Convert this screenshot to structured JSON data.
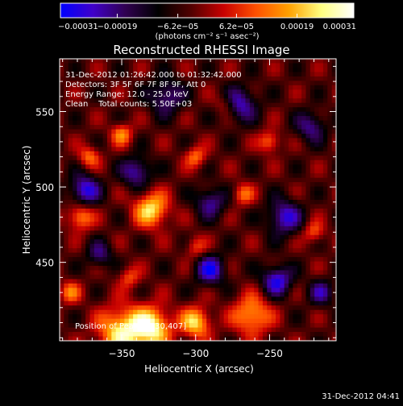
{
  "chart_data": {
    "type": "heatmap",
    "title": "Reconstructed RHESSI Image",
    "xlabel": "Heliocentric X (arcsec)",
    "ylabel": "Heliocentric Y (arcsec)",
    "xlim": [
      -392,
      -205
    ],
    "ylim": [
      398,
      585
    ],
    "x_ticks": [
      -350,
      -300,
      -250
    ],
    "x_tick_labels": [
      "−350",
      "−300",
      "−250"
    ],
    "y_ticks": [
      450,
      500,
      550
    ],
    "y_tick_labels": [
      "450",
      "500",
      "550"
    ],
    "colorbar": {
      "range": [
        -0.00031,
        0.00031
      ],
      "ticks": [
        -0.00031,
        -0.00019,
        -6.2e-05,
        6.2e-05,
        0.00019,
        0.00031
      ],
      "tick_labels": [
        "−0.00031",
        "−0.00019",
        "−6.2e−05",
        "6.2e−05",
        "0.00019",
        "0.00031"
      ],
      "unit": "(photons cm⁻² s⁻¹ asec⁻²)",
      "colors": [
        "#0000ff",
        "#4000c8",
        "#300050",
        "#000000",
        "#500000",
        "#c80000",
        "#ff5000",
        "#ffa000",
        "#ffff80",
        "#ffffff"
      ]
    },
    "annotations": [
      "31-Dec-2012 01:26:42.000 to 01:32:42.000",
      "Detectors: 3F 5F 6F 7F 8F 9F, Att 0",
      "Energy Range: 12.0 - 25.0 keV",
      "Clean    Total counts: 5.50E+03"
    ],
    "peak_label": "Position of Peak: [-330,407]",
    "timestamp": "31-Dec-2012 04:41",
    "sources": [
      {
        "x": -330,
        "y": 407,
        "value": 0.00031,
        "sigma": 9
      },
      {
        "x": -350,
        "y": 404,
        "value": 0.00028,
        "sigma": 11
      },
      {
        "x": -300,
        "y": 410,
        "value": 0.00026,
        "sigma": 7
      },
      {
        "x": -262,
        "y": 415,
        "value": 0.00022,
        "sigma": 9
      },
      {
        "x": -330,
        "y": 485,
        "value": 0.00027,
        "sigma": 8
      },
      {
        "x": -378,
        "y": 480,
        "value": 0.0002,
        "sigma": 6
      },
      {
        "x": -372,
        "y": 520,
        "value": 0.00016,
        "sigma": 5
      },
      {
        "x": -350,
        "y": 535,
        "value": 0.00018,
        "sigma": 5
      },
      {
        "x": -300,
        "y": 520,
        "value": 0.00016,
        "sigma": 5
      },
      {
        "x": -268,
        "y": 495,
        "value": 0.00015,
        "sigma": 5
      },
      {
        "x": -250,
        "y": 530,
        "value": 0.00017,
        "sigma": 5
      },
      {
        "x": -220,
        "y": 470,
        "value": 0.00014,
        "sigma": 5
      },
      {
        "x": -345,
        "y": 440,
        "value": 0.00013,
        "sigma": 5
      },
      {
        "x": -300,
        "y": 460,
        "value": 0.00012,
        "sigma": 5
      },
      {
        "x": -385,
        "y": 430,
        "value": 0.00016,
        "sigma": 5
      },
      {
        "x": -280,
        "y": 555,
        "value": 0.0001,
        "sigma": 5
      },
      {
        "x": -375,
        "y": 498,
        "value": -0.00024,
        "sigma": 7
      },
      {
        "x": -340,
        "y": 510,
        "value": -0.0002,
        "sigma": 7
      },
      {
        "x": -320,
        "y": 560,
        "value": -0.00018,
        "sigma": 8
      },
      {
        "x": -270,
        "y": 555,
        "value": -0.0002,
        "sigma": 8
      },
      {
        "x": -222,
        "y": 540,
        "value": -0.00017,
        "sigma": 7
      },
      {
        "x": -290,
        "y": 490,
        "value": -0.00018,
        "sigma": 7
      },
      {
        "x": -240,
        "y": 480,
        "value": -0.00022,
        "sigma": 8
      },
      {
        "x": -290,
        "y": 445,
        "value": -0.00023,
        "sigma": 7
      },
      {
        "x": -245,
        "y": 438,
        "value": -0.00024,
        "sigma": 7
      },
      {
        "x": -365,
        "y": 455,
        "value": -0.00015,
        "sigma": 6
      },
      {
        "x": -215,
        "y": 430,
        "value": -0.00016,
        "sigma": 6
      }
    ]
  }
}
